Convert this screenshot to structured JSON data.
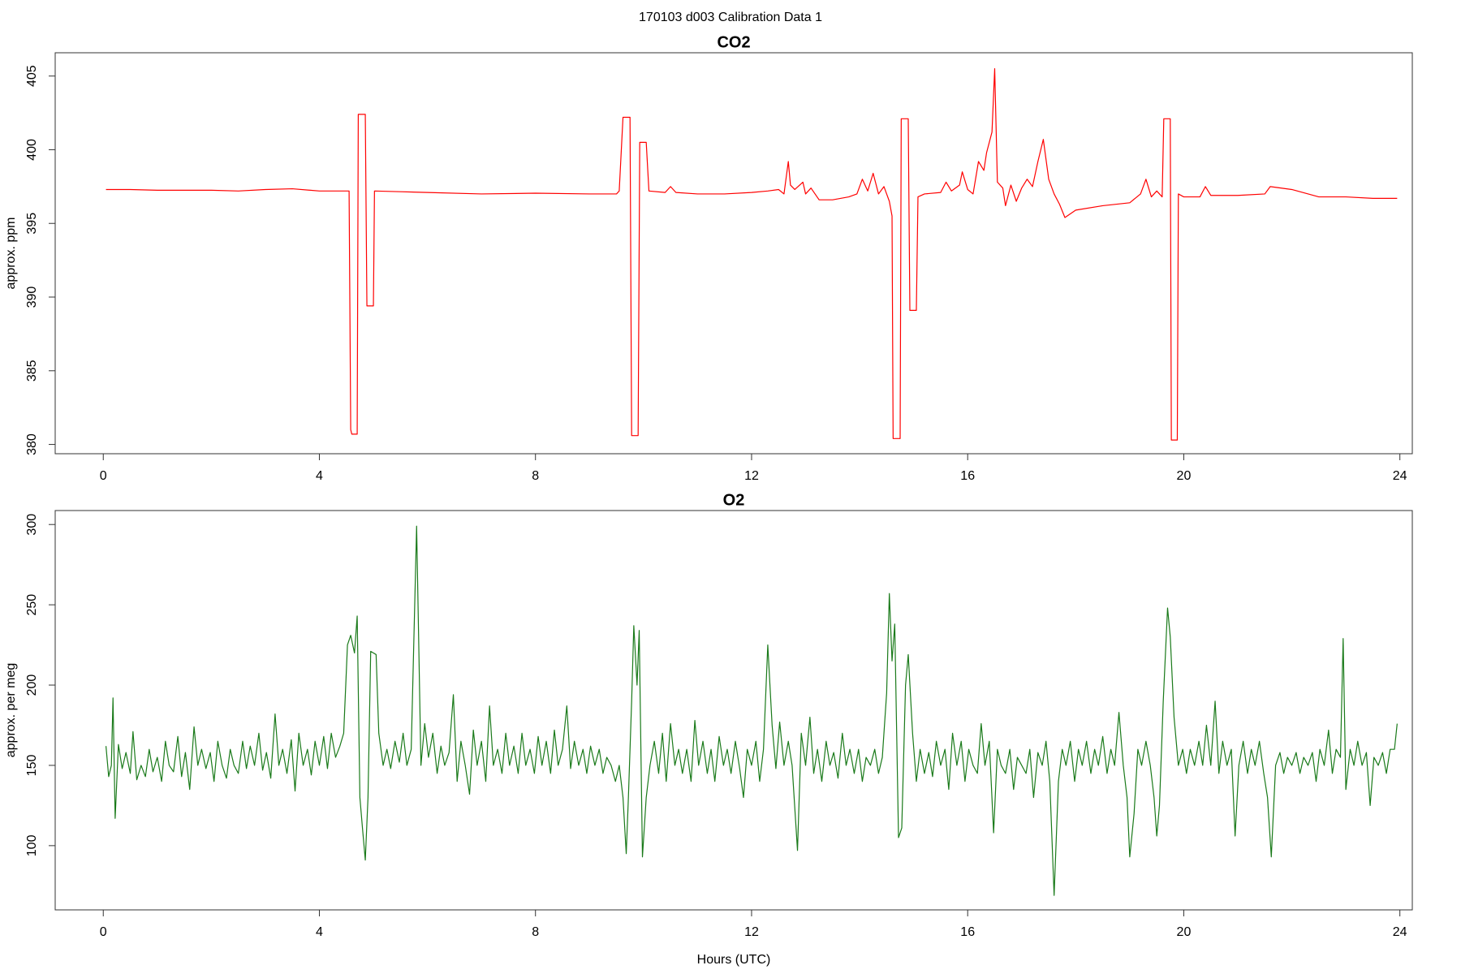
{
  "title": "170103   d003   Calibration Data 1",
  "chart_data": [
    {
      "type": "line",
      "title": "CO2",
      "ylabel": "approx. ppm",
      "color": "#ff0000",
      "xlim": [
        -0.89,
        24.23
      ],
      "ylim": [
        379.37,
        406.58
      ],
      "xticks": [
        0,
        4,
        8,
        12,
        16,
        20,
        24
      ],
      "yticks": [
        380,
        385,
        390,
        395,
        400,
        405
      ],
      "x": [
        0.05,
        0.5,
        1,
        2,
        2.5,
        3,
        3.5,
        4,
        4.5,
        4.55,
        4.58,
        4.6,
        4.7,
        4.72,
        4.85,
        4.88,
        5.0,
        5.02,
        5.5,
        6,
        7,
        8,
        9,
        9.5,
        9.55,
        9.62,
        9.75,
        9.78,
        9.9,
        9.93,
        10.05,
        10.1,
        10.4,
        10.5,
        10.6,
        11,
        11.5,
        12,
        12.3,
        12.5,
        12.6,
        12.68,
        12.72,
        12.8,
        12.95,
        13.0,
        13.1,
        13.25,
        13.5,
        13.8,
        13.95,
        14.05,
        14.15,
        14.25,
        14.35,
        14.45,
        14.5,
        14.55,
        14.6,
        14.62,
        14.75,
        14.77,
        14.9,
        14.93,
        15.05,
        15.08,
        15.2,
        15.5,
        15.6,
        15.7,
        15.85,
        15.9,
        16.0,
        16.1,
        16.2,
        16.3,
        16.35,
        16.45,
        16.5,
        16.55,
        16.65,
        16.7,
        16.8,
        16.9,
        17.0,
        17.1,
        17.2,
        17.3,
        17.4,
        17.5,
        17.6,
        17.7,
        17.8,
        18.0,
        18.5,
        19.0,
        19.2,
        19.3,
        19.4,
        19.5,
        19.6,
        19.63,
        19.75,
        19.77,
        19.88,
        19.9,
        20.0,
        20.3,
        20.4,
        20.5,
        21,
        21.5,
        21.6,
        22,
        22.5,
        23,
        23.5,
        23.95
      ],
      "values": [
        397.3,
        397.3,
        397.25,
        397.25,
        397.2,
        397.3,
        397.35,
        397.2,
        397.2,
        397.2,
        381.0,
        380.7,
        380.7,
        402.4,
        402.4,
        389.4,
        389.4,
        397.2,
        397.15,
        397.1,
        397.0,
        397.05,
        397.0,
        397.0,
        397.2,
        402.2,
        402.2,
        380.6,
        380.6,
        400.5,
        400.5,
        397.2,
        397.1,
        397.5,
        397.1,
        397.0,
        397.0,
        397.1,
        397.2,
        397.3,
        397.0,
        399.2,
        397.6,
        397.3,
        397.8,
        397.0,
        397.4,
        396.6,
        396.6,
        396.8,
        397.0,
        398.0,
        397.2,
        398.4,
        397.0,
        397.5,
        397.0,
        396.5,
        395.5,
        380.4,
        380.4,
        402.1,
        402.1,
        389.1,
        389.1,
        396.8,
        397.0,
        397.1,
        397.8,
        397.2,
        397.6,
        398.5,
        397.3,
        397.0,
        399.2,
        398.6,
        399.8,
        401.2,
        405.5,
        397.8,
        397.4,
        396.2,
        397.6,
        396.5,
        397.4,
        398.0,
        397.5,
        399.2,
        400.7,
        398.0,
        397.0,
        396.3,
        395.4,
        395.9,
        396.2,
        396.4,
        397.0,
        398.0,
        396.8,
        397.2,
        396.8,
        402.1,
        402.1,
        380.3,
        380.3,
        397.0,
        396.8,
        396.8,
        397.5,
        396.9,
        396.9,
        397.0,
        397.5,
        397.3,
        396.8,
        396.8,
        396.7,
        396.7
      ]
    },
    {
      "type": "line",
      "title": "O2",
      "ylabel": "approx. per meg",
      "xlabel": "Hours (UTC)",
      "color": "#1a7a1a",
      "xlim": [
        -0.89,
        24.23
      ],
      "ylim": [
        60,
        308.7
      ],
      "xticks": [
        0,
        4,
        8,
        12,
        16,
        20,
        24
      ],
      "yticks": [
        100,
        150,
        200,
        250,
        300
      ],
      "x": [
        0.05,
        0.1,
        0.15,
        0.18,
        0.22,
        0.28,
        0.35,
        0.42,
        0.5,
        0.55,
        0.62,
        0.7,
        0.78,
        0.85,
        0.92,
        1.0,
        1.08,
        1.15,
        1.22,
        1.3,
        1.38,
        1.45,
        1.52,
        1.6,
        1.68,
        1.75,
        1.82,
        1.9,
        1.98,
        2.05,
        2.12,
        2.2,
        2.28,
        2.35,
        2.42,
        2.5,
        2.58,
        2.65,
        2.72,
        2.8,
        2.88,
        2.95,
        3.02,
        3.1,
        3.18,
        3.25,
        3.32,
        3.4,
        3.48,
        3.55,
        3.62,
        3.7,
        3.78,
        3.85,
        3.92,
        4.0,
        4.08,
        4.15,
        4.22,
        4.3,
        4.38,
        4.45,
        4.52,
        4.58,
        4.65,
        4.7,
        4.75,
        4.8,
        4.85,
        4.9,
        4.95,
        5.05,
        5.1,
        5.18,
        5.25,
        5.32,
        5.4,
        5.48,
        5.55,
        5.62,
        5.7,
        5.8,
        5.88,
        5.95,
        6.02,
        6.1,
        6.18,
        6.25,
        6.32,
        6.4,
        6.48,
        6.55,
        6.62,
        6.7,
        6.78,
        6.85,
        6.92,
        7.0,
        7.08,
        7.15,
        7.22,
        7.3,
        7.38,
        7.45,
        7.52,
        7.6,
        7.68,
        7.75,
        7.82,
        7.9,
        7.98,
        8.05,
        8.12,
        8.2,
        8.28,
        8.35,
        8.42,
        8.5,
        8.58,
        8.65,
        8.72,
        8.8,
        8.88,
        8.95,
        9.02,
        9.1,
        9.18,
        9.25,
        9.32,
        9.4,
        9.48,
        9.55,
        9.62,
        9.68,
        9.72,
        9.78,
        9.82,
        9.88,
        9.92,
        9.98,
        10.05,
        10.12,
        10.2,
        10.28,
        10.35,
        10.42,
        10.5,
        10.58,
        10.65,
        10.72,
        10.8,
        10.88,
        10.95,
        11.02,
        11.1,
        11.18,
        11.25,
        11.32,
        11.4,
        11.48,
        11.55,
        11.62,
        11.7,
        11.78,
        11.85,
        11.92,
        12.0,
        12.08,
        12.15,
        12.22,
        12.3,
        12.38,
        12.45,
        12.52,
        12.6,
        12.68,
        12.75,
        12.85,
        12.92,
        13.0,
        13.08,
        13.15,
        13.22,
        13.3,
        13.38,
        13.45,
        13.52,
        13.6,
        13.68,
        13.75,
        13.82,
        13.9,
        13.98,
        14.05,
        14.12,
        14.2,
        14.28,
        14.35,
        14.42,
        14.5,
        14.55,
        14.6,
        14.65,
        14.72,
        14.78,
        14.85,
        14.9,
        14.98,
        15.05,
        15.12,
        15.2,
        15.28,
        15.35,
        15.42,
        15.5,
        15.58,
        15.65,
        15.72,
        15.8,
        15.88,
        15.95,
        16.02,
        16.1,
        16.18,
        16.25,
        16.32,
        16.4,
        16.48,
        16.55,
        16.62,
        16.7,
        16.78,
        16.85,
        16.92,
        17.0,
        17.08,
        17.15,
        17.22,
        17.3,
        17.38,
        17.45,
        17.52,
        17.6,
        17.68,
        17.75,
        17.82,
        17.9,
        17.98,
        18.05,
        18.12,
        18.2,
        18.28,
        18.35,
        18.42,
        18.5,
        18.58,
        18.65,
        18.72,
        18.8,
        18.88,
        18.95,
        19.0,
        19.08,
        19.15,
        19.22,
        19.3,
        19.38,
        19.45,
        19.5,
        19.55,
        19.62,
        19.7,
        19.75,
        19.82,
        19.9,
        19.98,
        20.05,
        20.12,
        20.2,
        20.28,
        20.35,
        20.42,
        20.5,
        20.58,
        20.65,
        20.72,
        20.8,
        20.88,
        20.95,
        21.02,
        21.1,
        21.18,
        21.25,
        21.32,
        21.4,
        21.48,
        21.55,
        21.62,
        21.7,
        21.78,
        21.85,
        21.92,
        22.0,
        22.08,
        22.15,
        22.22,
        22.3,
        22.38,
        22.45,
        22.52,
        22.6,
        22.68,
        22.75,
        22.82,
        22.9,
        22.95,
        23.0,
        23.08,
        23.15,
        23.22,
        23.3,
        23.38,
        23.45,
        23.52,
        23.6,
        23.68,
        23.75,
        23.82,
        23.9,
        23.95
      ],
      "values": [
        162,
        143,
        150,
        192,
        117,
        163,
        148,
        158,
        145,
        171,
        141,
        150,
        143,
        160,
        146,
        155,
        140,
        165,
        150,
        146,
        168,
        143,
        158,
        135,
        174,
        150,
        160,
        148,
        158,
        140,
        165,
        150,
        142,
        160,
        150,
        145,
        165,
        148,
        162,
        150,
        170,
        147,
        158,
        142,
        182,
        150,
        160,
        145,
        166,
        134,
        170,
        150,
        160,
        144,
        165,
        150,
        168,
        148,
        170,
        155,
        162,
        170,
        225,
        231,
        220,
        243,
        130,
        110,
        91,
        130,
        221,
        219,
        170,
        150,
        160,
        148,
        165,
        152,
        170,
        150,
        160,
        299,
        150,
        176,
        155,
        170,
        145,
        162,
        150,
        158,
        194,
        140,
        165,
        150,
        132,
        172,
        150,
        165,
        140,
        187,
        150,
        160,
        145,
        170,
        150,
        162,
        145,
        170,
        150,
        160,
        145,
        168,
        150,
        165,
        145,
        172,
        150,
        160,
        187,
        148,
        165,
        150,
        160,
        145,
        162,
        150,
        160,
        145,
        155,
        150,
        140,
        150,
        130,
        95,
        130,
        190,
        237,
        200,
        234,
        93,
        130,
        150,
        165,
        145,
        170,
        140,
        176,
        150,
        160,
        145,
        160,
        140,
        178,
        150,
        165,
        145,
        160,
        140,
        168,
        150,
        160,
        145,
        165,
        148,
        130,
        160,
        150,
        165,
        140,
        160,
        225,
        175,
        148,
        177,
        150,
        165,
        150,
        97,
        170,
        150,
        180,
        145,
        160,
        140,
        165,
        150,
        158,
        142,
        170,
        150,
        160,
        145,
        160,
        140,
        155,
        150,
        160,
        145,
        155,
        195,
        257,
        215,
        238,
        105,
        111,
        200,
        219,
        170,
        140,
        160,
        145,
        158,
        143,
        165,
        150,
        160,
        135,
        170,
        150,
        165,
        140,
        160,
        150,
        145,
        176,
        150,
        165,
        108,
        160,
        150,
        145,
        160,
        135,
        155,
        150,
        145,
        160,
        130,
        158,
        150,
        165,
        140,
        69,
        140,
        160,
        150,
        165,
        140,
        160,
        150,
        165,
        145,
        160,
        150,
        168,
        145,
        160,
        150,
        183,
        150,
        130,
        93,
        120,
        160,
        150,
        165,
        150,
        130,
        106,
        125,
        190,
        248,
        230,
        180,
        150,
        160,
        145,
        160,
        150,
        165,
        150,
        175,
        150,
        190,
        145,
        165,
        150,
        160,
        106,
        150,
        165,
        145,
        160,
        150,
        165,
        145,
        130,
        93,
        150,
        158,
        145,
        155,
        150,
        158,
        145,
        155,
        150,
        158,
        140,
        160,
        150,
        172,
        145,
        160,
        155,
        229,
        135,
        160,
        150,
        165,
        150,
        158,
        125,
        155,
        150,
        158,
        145,
        160,
        160,
        176
      ]
    }
  ]
}
